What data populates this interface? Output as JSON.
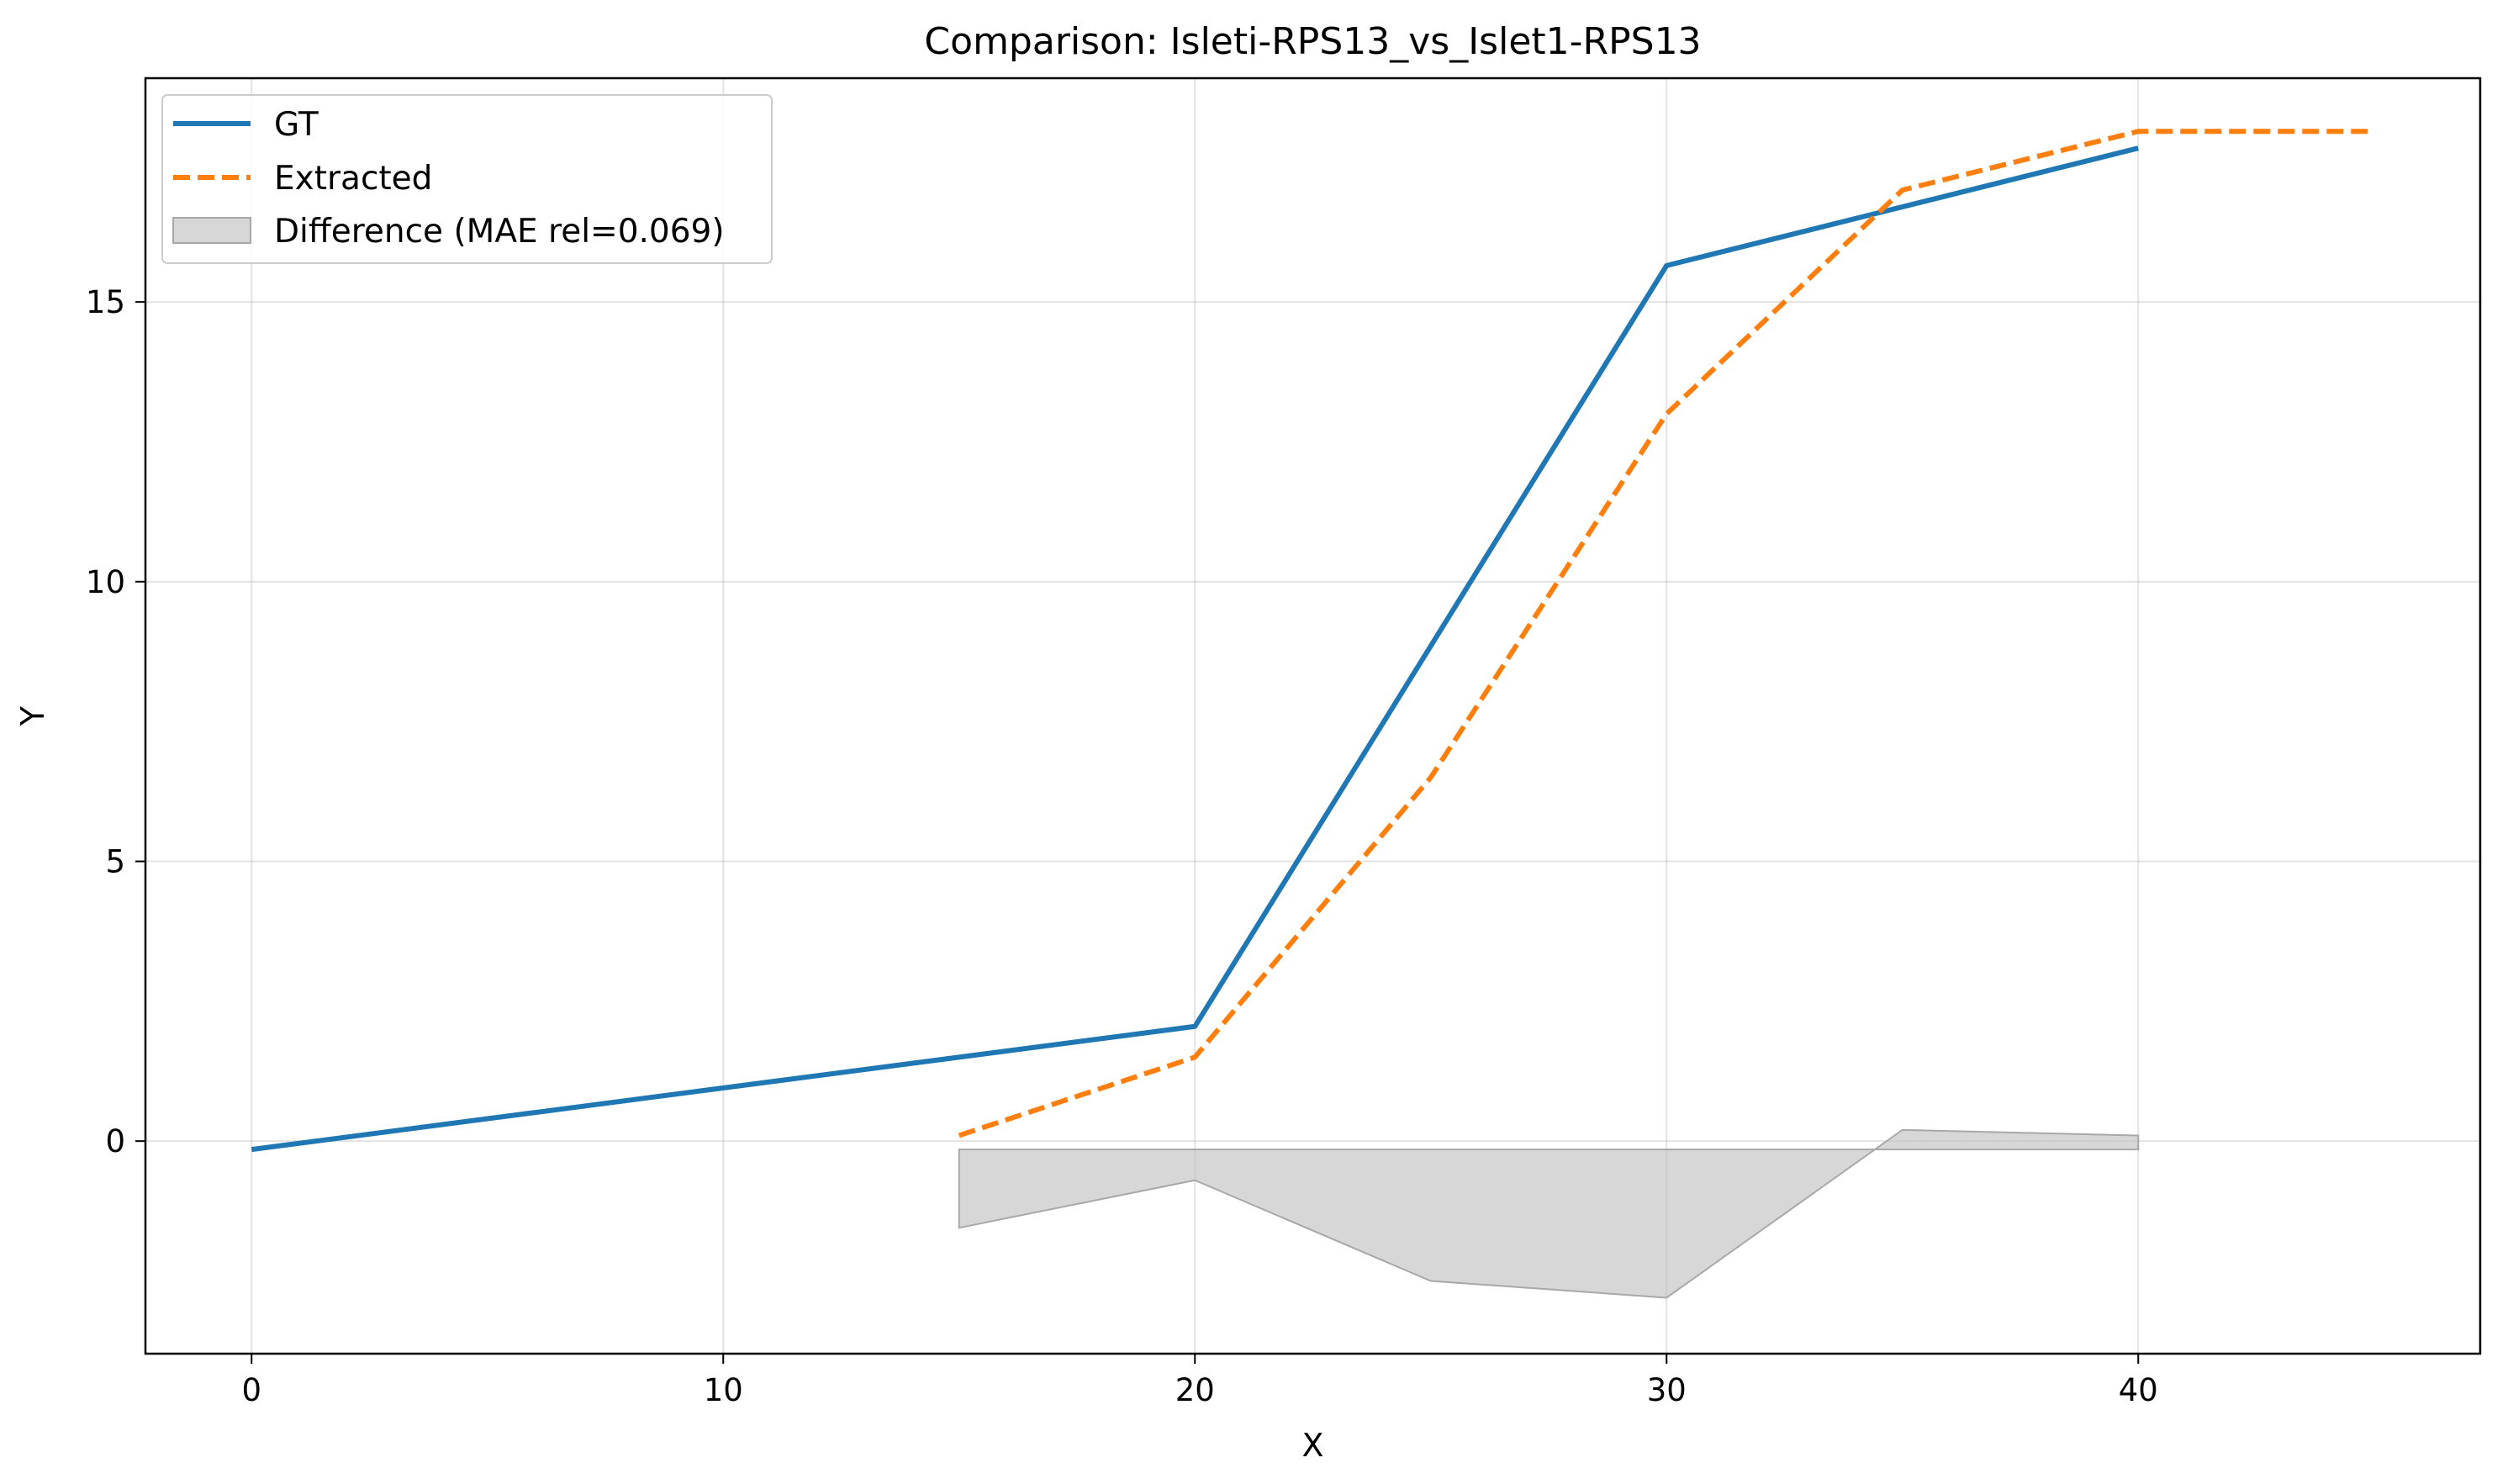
{
  "chart_data": {
    "type": "line",
    "title": "Comparison: Isleti-RPS13_vs_Islet1-RPS13",
    "xlabel": "X",
    "ylabel": "Y",
    "xlim": [
      -2.25,
      47.25
    ],
    "ylim": [
      -3.8,
      19.0
    ],
    "xticks": [
      0,
      10,
      20,
      30,
      40
    ],
    "yticks": [
      0,
      5,
      10,
      15
    ],
    "grid": true,
    "legend_position": "top-left",
    "series": [
      {
        "name": "GT",
        "style": "solid",
        "color": "#1f77b4",
        "x": [
          0,
          20,
          30,
          40
        ],
        "y": [
          -0.15,
          2.05,
          15.65,
          17.75
        ]
      },
      {
        "name": "Extracted",
        "style": "dashed",
        "color": "#ff7f0e",
        "x": [
          15,
          20,
          25,
          30,
          35,
          40,
          45
        ],
        "y": [
          0.1,
          1.5,
          6.5,
          13.0,
          17.0,
          18.05,
          18.05
        ]
      }
    ],
    "difference": {
      "name": "Difference (MAE rel=0.069)",
      "color": "#bdbdbd",
      "x": [
        15,
        20,
        25,
        30,
        35,
        40
      ],
      "y": [
        -1.55,
        -0.7,
        -2.5,
        -2.8,
        0.2,
        0.1
      ],
      "baseline": -0.15
    }
  }
}
